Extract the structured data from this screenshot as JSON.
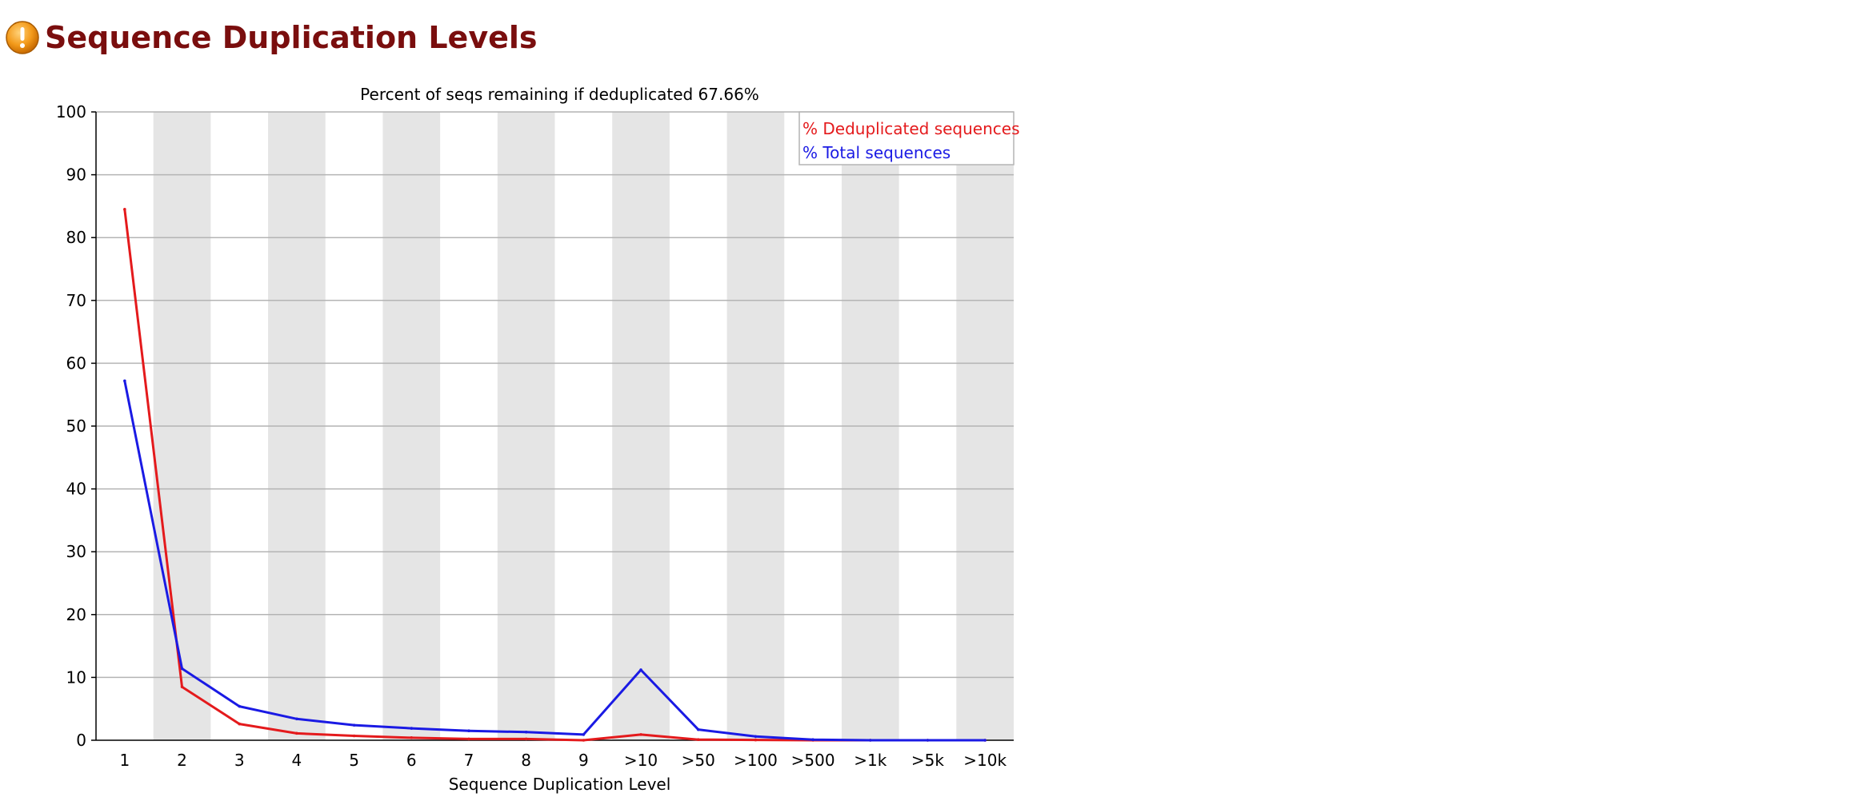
{
  "header": {
    "title": "Sequence Duplication Levels",
    "status_icon": "warning-icon"
  },
  "chart_data": {
    "type": "line",
    "title": "Percent of seqs remaining if deduplicated 67.66%",
    "xlabel": "Sequence Duplication Level",
    "ylabel": "",
    "categories": [
      "1",
      "2",
      "3",
      "4",
      "5",
      "6",
      "7",
      "8",
      "9",
      ">10",
      ">50",
      ">100",
      ">500",
      ">1k",
      ">5k",
      ">10k"
    ],
    "ylim": [
      0,
      100
    ],
    "yticks": [
      0,
      10,
      20,
      30,
      40,
      50,
      60,
      70,
      80,
      90,
      100
    ],
    "grid": true,
    "alternating_band_color": "#e5e5e5",
    "legend_position": "top-right",
    "series": [
      {
        "name": "% Deduplicated sequences",
        "color": "#e41a1c",
        "values": [
          84.5,
          8.5,
          2.6,
          1.1,
          0.7,
          0.4,
          0.2,
          0.2,
          0.0,
          0.9,
          0.1,
          0.05,
          0.0,
          0.0,
          0.0,
          0.0
        ]
      },
      {
        "name": "% Total sequences",
        "color": "#1a1ae4",
        "values": [
          57.2,
          11.4,
          5.4,
          3.4,
          2.4,
          1.9,
          1.5,
          1.3,
          0.9,
          11.2,
          1.7,
          0.6,
          0.1,
          0.0,
          0.0,
          0.0
        ]
      }
    ]
  }
}
